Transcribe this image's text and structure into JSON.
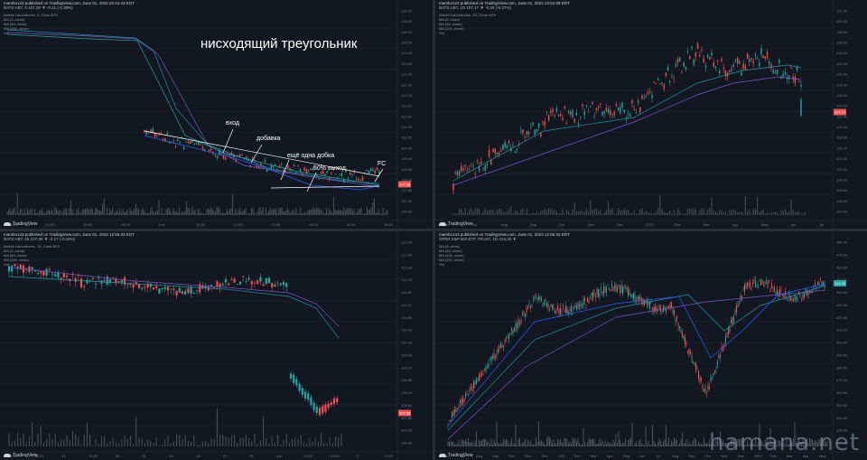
{
  "panels": [
    {
      "publisher": "mambo123 published on TradingView.com, June 01, 2022 22:44:43 EDT",
      "symbol_line": "BATS:ABT, 5  107.38 ▼ -0.41 (-0.38%)",
      "legend": [
        "Abbott Laboratories, 5, Cboe BZX",
        "MA (9, close)",
        "MA (50, close)",
        "MA (200, close)",
        "Vol"
      ],
      "brand": "TradingView",
      "title_annotation": "нисходящий треугольник",
      "annotations": {
        "entry": "вход",
        "add": "добавка",
        "add2": "ещё одна добка",
        "exit": "50% выход",
        "fc": "FC"
      },
      "price_ticks": [
        "116.00",
        "115.50",
        "115.00",
        "114.50",
        "114.00",
        "113.50",
        "113.00",
        "112.50",
        "112.00",
        "111.50",
        "111.00",
        "110.50",
        "110.00",
        "109.50",
        "109.00",
        "108.50",
        "108.00",
        "107.50",
        "107.00",
        "106.50"
      ],
      "price_tag": "107.38",
      "time_ticks": [
        "11:00",
        "14:00",
        "16:00",
        "18:00",
        "Jun",
        "10:30",
        "12:00",
        "13:30",
        "15:00",
        "16:30",
        "18:00"
      ]
    },
    {
      "publisher": "mambo123 published on TradingView.com, June 01, 2022 23:51:09 EDT",
      "symbol_line": "BATS:ABT, 1D  107.17 ▼ -0.29 (-0.27%)",
      "legend": [
        "Abbott Laboratories, 1D, Cboe BZX",
        "MA (9, close)",
        "MA (50, close)",
        "MA (200, close)",
        "Vol"
      ],
      "brand": "TradingView",
      "price_ticks": [
        "142.00",
        "140.00",
        "138.00",
        "136.00",
        "134.00",
        "132.00",
        "130.00",
        "128.00",
        "126.00",
        "124.00",
        "122.00",
        "120.00",
        "118.00",
        "116.00",
        "114.00",
        "112.00",
        "110.00",
        "108.00",
        "106.00",
        "104.00"
      ],
      "price_tag": "107.17",
      "time_ticks": [
        "Jun",
        "Jul",
        "Aug",
        "Sep",
        "Oct",
        "Nov",
        "Dec",
        "2022",
        "Feb",
        "Mar",
        "Apr",
        "May",
        "Jun",
        "Jul"
      ]
    },
    {
      "publisher": "mambo123 published on TradingView.com, June 01, 2022 12:55:33 EDT",
      "symbol_line": "BATS:ABT, 15  107.38 ▼ -0.17 (-0.16%)",
      "legend": [
        "Abbott Laboratories, 15, Cboe BZX",
        "MA (9, close)",
        "MA (50, close)",
        "MA (200, close)",
        "Vol"
      ],
      "brand": "TradingView",
      "price_ticks": [
        "113.20",
        "112.80",
        "112.40",
        "112.00",
        "111.60",
        "111.20",
        "110.80",
        "110.40",
        "110.00",
        "109.60",
        "109.20",
        "108.80",
        "108.40",
        "108.00",
        "107.60",
        "107.20",
        "106.80"
      ],
      "price_tag": "107.38",
      "time_ticks": [
        "12:00",
        "14:00",
        "16",
        "18:00",
        "20",
        "21",
        "24",
        "26",
        "27",
        "31",
        "Jun",
        "12:00",
        "14:00",
        "2",
        "13:00"
      ]
    },
    {
      "publisher": "mambo123 published on TradingView.com, June 01, 2022 12:55:33 EDT",
      "symbol_line": "SPDR S&P 500 ETF TRUST, 1D  414.35 ▼",
      "legend": [
        "MA (9, close)",
        "MA (50, close)",
        "MA (100, close)",
        "MA (200, close)",
        "Vol"
      ],
      "brand": "TradingView",
      "price_ticks": [
        "480.00",
        "470.00",
        "460.00",
        "450.00",
        "440.00",
        "430.00",
        "420.00",
        "410.00",
        "400.00",
        "390.00",
        "380.00",
        "370.00",
        "360.00",
        "350.00",
        "340.00",
        "330.00",
        "320.00"
      ],
      "price_tag": "414.35",
      "time_ticks": [
        "Jun",
        "Jul",
        "Aug",
        "Sep",
        "Oct",
        "Nov",
        "Dec",
        "2021",
        "Feb",
        "Mar",
        "Apr",
        "May",
        "Jun",
        "Jul",
        "Aug",
        "Sep",
        "Oct",
        "Nov",
        "Dec",
        "2022",
        "Feb",
        "Mar",
        "Apr",
        "May"
      ]
    }
  ],
  "watermark": "hamana.net",
  "colors": {
    "up": "#26a69a",
    "down": "#ef5350",
    "ma9": "#2962ff",
    "ma50": "#2196a6",
    "ma200": "#7e57c2",
    "vol": "#787b86",
    "bg": "#131722"
  }
}
